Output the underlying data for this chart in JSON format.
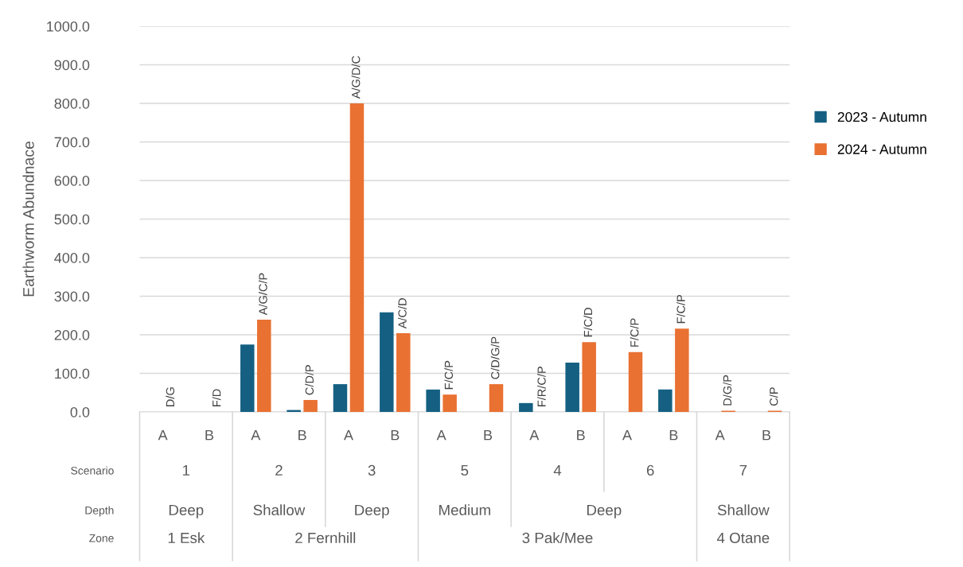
{
  "chart_data": {
    "type": "bar",
    "ylabel": "Earthworm Abundnace",
    "categories": [
      "A",
      "B",
      "A",
      "B",
      "A",
      "B",
      "A",
      "B",
      "A",
      "B",
      "A",
      "B",
      "A",
      "B"
    ],
    "series": [
      {
        "name": "2023 - Autumn",
        "color": "#156082",
        "values": [
          0,
          0,
          175,
          5,
          72,
          258,
          58,
          0,
          23,
          128,
          0,
          58,
          0,
          0
        ]
      },
      {
        "name": "2024 - Autumn",
        "color": "#e97132",
        "values": [
          0,
          0,
          239,
          31,
          800,
          204,
          45,
          72,
          0,
          181,
          155,
          216,
          3,
          3
        ],
        "value_labels": [
          "D/G",
          "F/D",
          "A/G/C/P",
          "C/D/P",
          "A/G/D/C",
          "A/C/D",
          "F/C/P",
          "C/D/G/P",
          "F/R/C/P",
          "F/C/D",
          "F/C/P",
          "F/C/P",
          "D/G/P",
          "C/P"
        ]
      }
    ],
    "annotations": [
      "Scenario",
      "1",
      "2",
      "3",
      "5",
      "4",
      "6",
      "7",
      "Depth",
      "Deep",
      "Shallow",
      "Deep",
      "Medium",
      "Deep",
      "Shallow",
      "Zone",
      "1 Esk",
      "2 Fernhill",
      "3 Pak/Mee",
      "4 Otane"
    ],
    "ylim": [
      0,
      1000
    ],
    "yticks": [
      {
        "value": 0,
        "label": "0.0"
      },
      {
        "value": 100,
        "label": "100.0"
      },
      {
        "value": 200,
        "label": "200.0"
      },
      {
        "value": 300,
        "label": "300.0"
      },
      {
        "value": 400,
        "label": "400.0"
      },
      {
        "value": 500,
        "label": "500.0"
      },
      {
        "value": 600,
        "label": "600.0"
      },
      {
        "value": 700,
        "label": "700.0"
      },
      {
        "value": 800,
        "label": "800.0"
      },
      {
        "value": 900,
        "label": "900.0"
      },
      {
        "value": 1000,
        "label": "1000.0"
      }
    ],
    "grid": "y",
    "legend": "right"
  }
}
